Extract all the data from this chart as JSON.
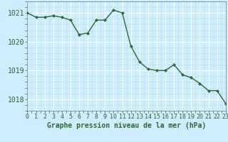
{
  "x": [
    0,
    1,
    2,
    3,
    4,
    5,
    6,
    7,
    8,
    9,
    10,
    11,
    12,
    13,
    14,
    15,
    16,
    17,
    18,
    19,
    20,
    21,
    22,
    23
  ],
  "y": [
    1021.0,
    1020.85,
    1020.85,
    1020.9,
    1020.85,
    1020.75,
    1020.25,
    1020.3,
    1020.75,
    1020.75,
    1021.1,
    1021.0,
    1019.85,
    1019.3,
    1019.05,
    1019.0,
    1019.0,
    1019.2,
    1018.85,
    1018.75,
    1018.55,
    1018.3,
    1018.3,
    1017.85
  ],
  "line_color": "#2d6a2d",
  "marker_color": "#2d6a2d",
  "bg_color": "#cceeff",
  "grid_major_color": "#ffffff",
  "grid_minor_color": "#bbdddd",
  "ylabel_ticks": [
    1018,
    1019,
    1020,
    1021
  ],
  "xlim": [
    0,
    23
  ],
  "ylim": [
    1017.6,
    1021.4
  ],
  "xlabel": "Graphe pression niveau de la mer (hPa)",
  "xlabel_fontsize": 7,
  "tick_fontsize": 6,
  "axis_color": "#2d6a2d"
}
